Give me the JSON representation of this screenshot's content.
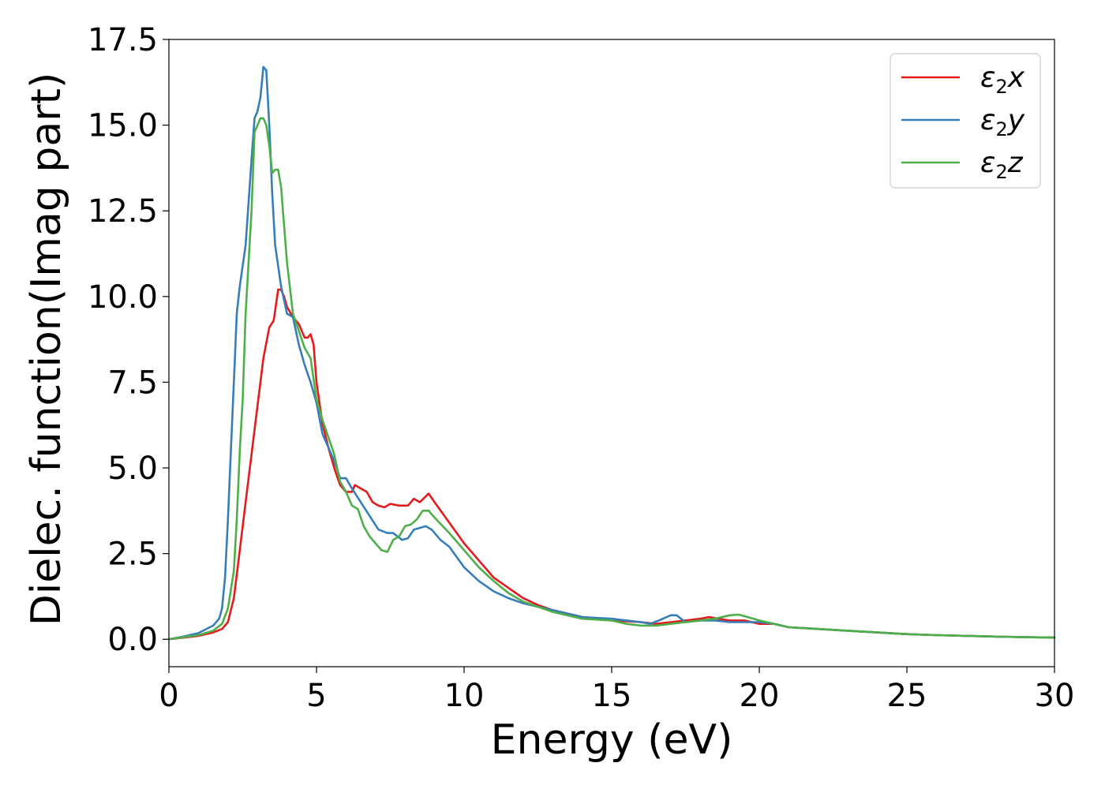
{
  "chart_data": {
    "type": "line",
    "xlabel": "Energy (eV)",
    "ylabel": "Dielec. function(Imag part)",
    "xlim": [
      0,
      30
    ],
    "ylim": [
      -0.8,
      17.5
    ],
    "xticks": [
      0,
      5,
      10,
      15,
      20,
      25,
      30
    ],
    "xtick_labels": [
      "0",
      "5",
      "10",
      "15",
      "20",
      "25",
      "30"
    ],
    "yticks": [
      0.0,
      2.5,
      5.0,
      7.5,
      10.0,
      12.5,
      15.0,
      17.5
    ],
    "ytick_labels": [
      "0.0",
      "2.5",
      "5.0",
      "7.5",
      "10.0",
      "12.5",
      "15.0",
      "17.5"
    ],
    "grid": false,
    "legend_position": "top-right",
    "series": [
      {
        "name": "ε2x",
        "label_base": "ε",
        "label_sub": "2",
        "label_suffix": "x",
        "color": "#e41a1c",
        "points": [
          [
            0,
            0
          ],
          [
            0.5,
            0.05
          ],
          [
            1.0,
            0.1
          ],
          [
            1.5,
            0.2
          ],
          [
            1.8,
            0.3
          ],
          [
            2.0,
            0.5
          ],
          [
            2.2,
            1.2
          ],
          [
            2.4,
            2.6
          ],
          [
            2.6,
            4.0
          ],
          [
            2.8,
            5.4
          ],
          [
            3.0,
            6.8
          ],
          [
            3.2,
            8.2
          ],
          [
            3.4,
            9.1
          ],
          [
            3.55,
            9.3
          ],
          [
            3.7,
            10.2
          ],
          [
            3.8,
            10.2
          ],
          [
            3.9,
            10.0
          ],
          [
            4.0,
            9.7
          ],
          [
            4.2,
            9.4
          ],
          [
            4.4,
            9.2
          ],
          [
            4.6,
            8.8
          ],
          [
            4.7,
            8.8
          ],
          [
            4.8,
            8.9
          ],
          [
            4.9,
            8.6
          ],
          [
            5.0,
            7.5
          ],
          [
            5.2,
            6.3
          ],
          [
            5.4,
            5.6
          ],
          [
            5.6,
            5.0
          ],
          [
            5.8,
            4.5
          ],
          [
            6.0,
            4.3
          ],
          [
            6.2,
            4.3
          ],
          [
            6.3,
            4.5
          ],
          [
            6.5,
            4.4
          ],
          [
            6.7,
            4.3
          ],
          [
            6.9,
            4.0
          ],
          [
            7.1,
            3.9
          ],
          [
            7.3,
            3.85
          ],
          [
            7.5,
            3.95
          ],
          [
            7.8,
            3.9
          ],
          [
            8.1,
            3.9
          ],
          [
            8.3,
            4.1
          ],
          [
            8.5,
            4.0
          ],
          [
            8.8,
            4.25
          ],
          [
            9.0,
            4.0
          ],
          [
            9.5,
            3.4
          ],
          [
            10.0,
            2.8
          ],
          [
            10.5,
            2.3
          ],
          [
            11.0,
            1.8
          ],
          [
            11.5,
            1.5
          ],
          [
            12.0,
            1.2
          ],
          [
            12.5,
            1.0
          ],
          [
            13.0,
            0.85
          ],
          [
            14.0,
            0.65
          ],
          [
            15.0,
            0.55
          ],
          [
            16.0,
            0.5
          ],
          [
            16.5,
            0.45
          ],
          [
            17.0,
            0.5
          ],
          [
            17.5,
            0.55
          ],
          [
            18.0,
            0.6
          ],
          [
            18.3,
            0.65
          ],
          [
            18.6,
            0.6
          ],
          [
            19.0,
            0.55
          ],
          [
            19.5,
            0.55
          ],
          [
            20.0,
            0.45
          ],
          [
            20.5,
            0.45
          ],
          [
            21.0,
            0.35
          ],
          [
            22.0,
            0.3
          ],
          [
            23.0,
            0.25
          ],
          [
            24.0,
            0.2
          ],
          [
            25.0,
            0.15
          ],
          [
            26.0,
            0.12
          ],
          [
            27.0,
            0.1
          ],
          [
            28.0,
            0.08
          ],
          [
            29.0,
            0.06
          ],
          [
            30.0,
            0.05
          ]
        ]
      },
      {
        "name": "ε2y",
        "label_base": "ε",
        "label_sub": "2",
        "label_suffix": "y",
        "color": "#377eb8",
        "points": [
          [
            0,
            0
          ],
          [
            0.5,
            0.08
          ],
          [
            1.0,
            0.18
          ],
          [
            1.5,
            0.4
          ],
          [
            1.7,
            0.6
          ],
          [
            1.8,
            0.9
          ],
          [
            1.9,
            1.8
          ],
          [
            2.0,
            3.5
          ],
          [
            2.1,
            5.5
          ],
          [
            2.2,
            7.5
          ],
          [
            2.3,
            9.5
          ],
          [
            2.4,
            10.3
          ],
          [
            2.6,
            11.5
          ],
          [
            2.8,
            14.0
          ],
          [
            2.9,
            15.2
          ],
          [
            3.0,
            15.4
          ],
          [
            3.1,
            15.8
          ],
          [
            3.2,
            16.7
          ],
          [
            3.3,
            16.6
          ],
          [
            3.4,
            15.0
          ],
          [
            3.5,
            13.0
          ],
          [
            3.6,
            11.5
          ],
          [
            3.8,
            10.3
          ],
          [
            4.0,
            9.5
          ],
          [
            4.2,
            9.4
          ],
          [
            4.4,
            8.6
          ],
          [
            4.6,
            8.0
          ],
          [
            4.8,
            7.5
          ],
          [
            5.0,
            6.9
          ],
          [
            5.2,
            6.0
          ],
          [
            5.4,
            5.6
          ],
          [
            5.6,
            5.2
          ],
          [
            5.8,
            4.7
          ],
          [
            6.0,
            4.7
          ],
          [
            6.2,
            4.4
          ],
          [
            6.5,
            4.0
          ],
          [
            6.8,
            3.6
          ],
          [
            7.1,
            3.2
          ],
          [
            7.4,
            3.1
          ],
          [
            7.6,
            3.1
          ],
          [
            7.9,
            2.9
          ],
          [
            8.1,
            2.95
          ],
          [
            8.3,
            3.2
          ],
          [
            8.5,
            3.25
          ],
          [
            8.7,
            3.3
          ],
          [
            8.9,
            3.2
          ],
          [
            9.2,
            2.9
          ],
          [
            9.5,
            2.7
          ],
          [
            10.0,
            2.1
          ],
          [
            10.5,
            1.7
          ],
          [
            11.0,
            1.4
          ],
          [
            11.5,
            1.2
          ],
          [
            12.0,
            1.05
          ],
          [
            13.0,
            0.85
          ],
          [
            14.0,
            0.65
          ],
          [
            15.0,
            0.6
          ],
          [
            15.5,
            0.55
          ],
          [
            16.0,
            0.5
          ],
          [
            16.3,
            0.45
          ],
          [
            16.6,
            0.55
          ],
          [
            17.0,
            0.7
          ],
          [
            17.2,
            0.7
          ],
          [
            17.5,
            0.5
          ],
          [
            18.0,
            0.55
          ],
          [
            18.5,
            0.55
          ],
          [
            19.0,
            0.5
          ],
          [
            19.5,
            0.5
          ],
          [
            20.0,
            0.5
          ],
          [
            20.5,
            0.45
          ],
          [
            21.0,
            0.35
          ],
          [
            22.0,
            0.3
          ],
          [
            23.0,
            0.25
          ],
          [
            24.0,
            0.2
          ],
          [
            25.0,
            0.15
          ],
          [
            26.0,
            0.12
          ],
          [
            27.0,
            0.1
          ],
          [
            28.0,
            0.08
          ],
          [
            29.0,
            0.06
          ],
          [
            30.0,
            0.05
          ]
        ]
      },
      {
        "name": "ε2z",
        "label_base": "ε",
        "label_sub": "2",
        "label_suffix": "z",
        "color": "#4daf4a",
        "points": [
          [
            0,
            0
          ],
          [
            0.5,
            0.06
          ],
          [
            1.0,
            0.12
          ],
          [
            1.5,
            0.25
          ],
          [
            1.8,
            0.45
          ],
          [
            2.0,
            0.9
          ],
          [
            2.2,
            2.0
          ],
          [
            2.3,
            3.5
          ],
          [
            2.4,
            5.5
          ],
          [
            2.5,
            7.0
          ],
          [
            2.6,
            9.5
          ],
          [
            2.8,
            12.5
          ],
          [
            2.9,
            14.8
          ],
          [
            3.0,
            15.0
          ],
          [
            3.1,
            15.2
          ],
          [
            3.2,
            15.2
          ],
          [
            3.3,
            15.0
          ],
          [
            3.4,
            14.4
          ],
          [
            3.5,
            13.6
          ],
          [
            3.6,
            13.7
          ],
          [
            3.7,
            13.7
          ],
          [
            3.8,
            13.2
          ],
          [
            4.0,
            11.0
          ],
          [
            4.2,
            9.5
          ],
          [
            4.4,
            9.0
          ],
          [
            4.6,
            8.5
          ],
          [
            4.8,
            8.2
          ],
          [
            5.0,
            7.0
          ],
          [
            5.2,
            6.4
          ],
          [
            5.4,
            5.9
          ],
          [
            5.6,
            5.4
          ],
          [
            5.8,
            4.6
          ],
          [
            6.0,
            4.3
          ],
          [
            6.2,
            3.9
          ],
          [
            6.4,
            3.8
          ],
          [
            6.6,
            3.3
          ],
          [
            6.8,
            3.0
          ],
          [
            7.0,
            2.8
          ],
          [
            7.2,
            2.6
          ],
          [
            7.4,
            2.55
          ],
          [
            7.6,
            2.9
          ],
          [
            7.8,
            3.0
          ],
          [
            8.0,
            3.3
          ],
          [
            8.2,
            3.35
          ],
          [
            8.4,
            3.5
          ],
          [
            8.6,
            3.75
          ],
          [
            8.8,
            3.75
          ],
          [
            9.0,
            3.55
          ],
          [
            9.5,
            3.1
          ],
          [
            10.0,
            2.6
          ],
          [
            10.5,
            2.1
          ],
          [
            11.0,
            1.7
          ],
          [
            11.5,
            1.35
          ],
          [
            12.0,
            1.1
          ],
          [
            12.5,
            0.95
          ],
          [
            13.0,
            0.8
          ],
          [
            14.0,
            0.6
          ],
          [
            15.0,
            0.55
          ],
          [
            15.5,
            0.45
          ],
          [
            16.0,
            0.4
          ],
          [
            16.5,
            0.4
          ],
          [
            17.0,
            0.45
          ],
          [
            17.5,
            0.5
          ],
          [
            18.0,
            0.55
          ],
          [
            18.5,
            0.6
          ],
          [
            19.0,
            0.7
          ],
          [
            19.3,
            0.72
          ],
          [
            19.6,
            0.65
          ],
          [
            20.0,
            0.55
          ],
          [
            20.5,
            0.45
          ],
          [
            21.0,
            0.35
          ],
          [
            22.0,
            0.3
          ],
          [
            23.0,
            0.25
          ],
          [
            24.0,
            0.2
          ],
          [
            25.0,
            0.15
          ],
          [
            26.0,
            0.12
          ],
          [
            27.0,
            0.1
          ],
          [
            28.0,
            0.08
          ],
          [
            29.0,
            0.06
          ],
          [
            30.0,
            0.05
          ]
        ]
      }
    ]
  }
}
